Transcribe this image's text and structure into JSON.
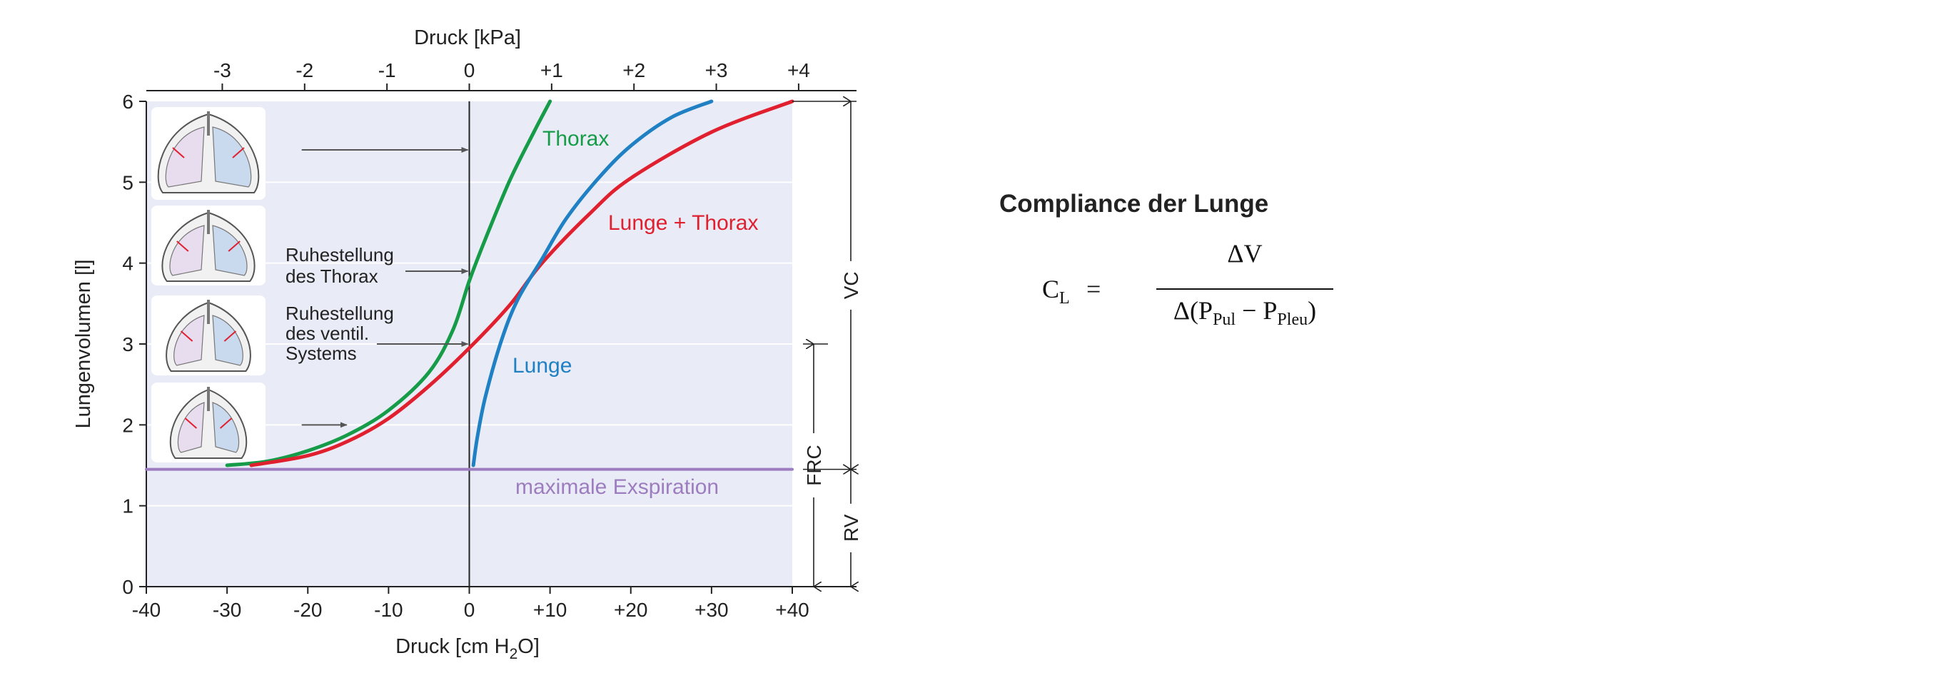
{
  "chart_data": {
    "type": "line",
    "top_axis": {
      "title": "Druck [kPa]",
      "ticks": [
        {
          "value": -3,
          "label": "-3"
        },
        {
          "value": -2,
          "label": "-2"
        },
        {
          "value": -1,
          "label": "-1"
        },
        {
          "value": 0,
          "label": "0"
        },
        {
          "value": 1,
          "label": "+1"
        },
        {
          "value": 2,
          "label": "+2"
        },
        {
          "value": 3,
          "label": "+3"
        },
        {
          "value": 4,
          "label": "+4"
        }
      ]
    },
    "x_axis": {
      "title_main": "Druck [cm H",
      "title_sub": "2",
      "title_end": "O]",
      "range": [
        -40,
        40
      ],
      "ticks": [
        {
          "value": -40,
          "label": "-40"
        },
        {
          "value": -30,
          "label": "-30"
        },
        {
          "value": -20,
          "label": "-20"
        },
        {
          "value": -10,
          "label": "-10"
        },
        {
          "value": 0,
          "label": "0"
        },
        {
          "value": 10,
          "label": "+10"
        },
        {
          "value": 20,
          "label": "+20"
        },
        {
          "value": 30,
          "label": "+30"
        },
        {
          "value": 40,
          "label": "+40"
        }
      ]
    },
    "y_axis": {
      "title": "Lungenvolumen [l]",
      "range": [
        0,
        6
      ],
      "ticks": [
        {
          "value": 0,
          "label": "0"
        },
        {
          "value": 1,
          "label": "1"
        },
        {
          "value": 2,
          "label": "2"
        },
        {
          "value": 3,
          "label": "3"
        },
        {
          "value": 4,
          "label": "4"
        },
        {
          "value": 5,
          "label": "5"
        },
        {
          "value": 6,
          "label": "6"
        }
      ]
    },
    "grid": "horizontal",
    "series": [
      {
        "name": "Thorax",
        "color": "#169b48",
        "points": [
          [
            -30,
            1.5
          ],
          [
            -25,
            1.55
          ],
          [
            -20,
            1.68
          ],
          [
            -15,
            1.88
          ],
          [
            -10,
            2.18
          ],
          [
            -5,
            2.65
          ],
          [
            -2,
            3.18
          ],
          [
            0,
            3.78
          ],
          [
            2,
            4.3
          ],
          [
            5,
            5.02
          ],
          [
            8,
            5.62
          ],
          [
            10,
            6.0
          ]
        ]
      },
      {
        "name": "Lunge + Thorax",
        "color": "#e0202f",
        "points": [
          [
            -27,
            1.5
          ],
          [
            -20,
            1.62
          ],
          [
            -15,
            1.8
          ],
          [
            -10,
            2.08
          ],
          [
            -5,
            2.48
          ],
          [
            0,
            2.95
          ],
          [
            5,
            3.48
          ],
          [
            9,
            4.0
          ],
          [
            15,
            4.62
          ],
          [
            20,
            5.05
          ],
          [
            30,
            5.62
          ],
          [
            40,
            6.0
          ]
        ]
      },
      {
        "name": "Lunge",
        "color": "#1f80c4",
        "points": [
          [
            0.5,
            1.5
          ],
          [
            1,
            1.85
          ],
          [
            2,
            2.35
          ],
          [
            4,
            3.05
          ],
          [
            6,
            3.55
          ],
          [
            9,
            4.05
          ],
          [
            12,
            4.55
          ],
          [
            16,
            5.05
          ],
          [
            20,
            5.45
          ],
          [
            25,
            5.8
          ],
          [
            30,
            6.0
          ]
        ]
      },
      {
        "name": "maximale Exspiration",
        "color": "#9d7cbf",
        "points": [
          [
            -40,
            1.45
          ],
          [
            40,
            1.45
          ]
        ]
      }
    ],
    "vertical_line_at": 0,
    "annotations": [
      {
        "lines": [
          "Ruhestellung",
          "des Thorax"
        ],
        "arrow_to": [
          0,
          3.9
        ]
      },
      {
        "lines": [
          "Ruhestellung",
          "des ventil.",
          "Systems"
        ],
        "arrow_to": [
          0,
          3.0
        ]
      }
    ],
    "guide_arrows": [
      {
        "from": [
          -25,
          5.4
        ],
        "to": [
          0,
          5.4
        ]
      },
      {
        "from": [
          -25,
          2.0
        ],
        "to": [
          -15,
          2.0
        ]
      }
    ],
    "brackets": [
      {
        "label": "VC",
        "from": 1.45,
        "to": 6.0
      },
      {
        "label": "FRC",
        "from": 0,
        "to": 3.0
      },
      {
        "label": "RV",
        "from": 0,
        "to": 1.45
      }
    ],
    "illustration": "lung diagrams"
  },
  "compliance": {
    "title": "Compliance der Lunge",
    "lhs": "C",
    "lhs_sub": "L",
    "equals": "=",
    "numerator": "ΔV",
    "den_start": "Δ(P",
    "den_sub1": "Pul",
    "den_mid": " − P",
    "den_sub2": "Pleu",
    "den_end": ")"
  }
}
